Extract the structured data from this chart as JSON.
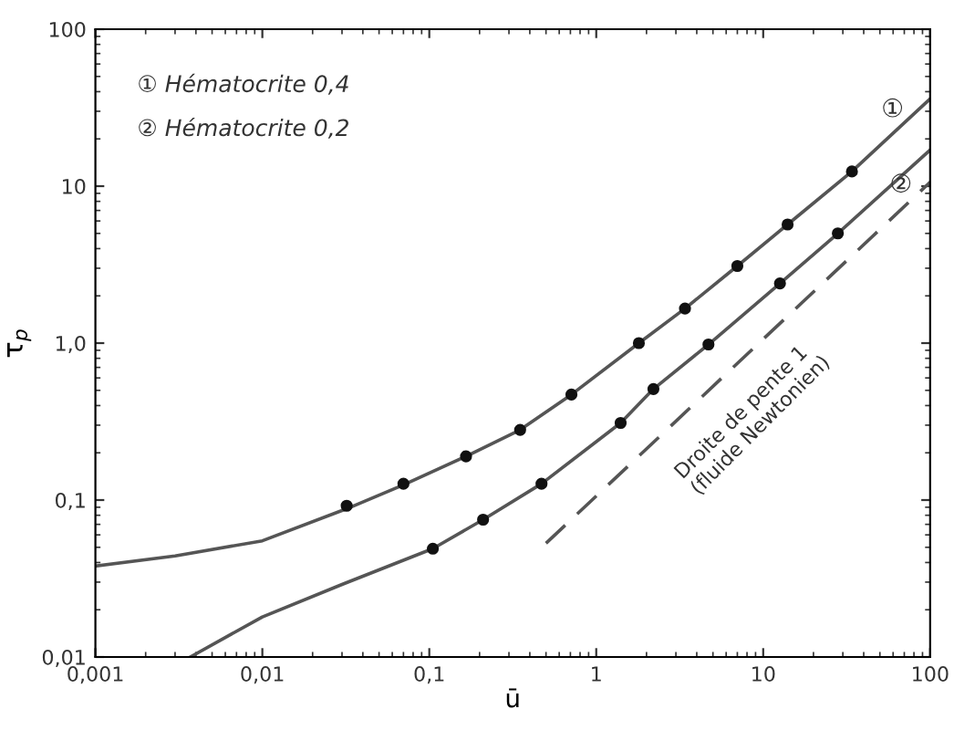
{
  "chart_data": {
    "type": "scatter",
    "xlabel": "ū",
    "ylabel": "τ$_{p}$",
    "log": "xy",
    "grid": false,
    "legend": false,
    "xlim": [
      0.001,
      100
    ],
    "ylim": [
      0.01,
      100
    ],
    "xticks": [
      {
        "value": 0.001,
        "label": "0,001"
      },
      {
        "value": 0.01,
        "label": "0,01"
      },
      {
        "value": 0.1,
        "label": "0,1"
      },
      1,
      10,
      100
    ],
    "yticks": [
      {
        "value": 0.01,
        "label": "0,01"
      },
      {
        "value": 0.1,
        "label": "0,1"
      },
      {
        "value": 1,
        "label": "1,0"
      },
      10,
      100
    ],
    "series": [
      {
        "color": "#111111",
        "marker": "circle",
        "x": [
          0.032,
          0.07,
          0.166,
          0.35,
          0.71,
          1.8,
          3.4,
          7,
          14,
          34
        ],
        "values": [
          0.092,
          0.127,
          0.19,
          0.28,
          0.47,
          1.0,
          1.66,
          3.1,
          5.7,
          12.4
        ]
      },
      {
        "color": "#111111",
        "marker": "circle",
        "x": [
          0.105,
          0.21,
          0.47,
          1.4,
          2.2,
          4.7,
          12.6,
          28
        ],
        "values": [
          0.049,
          0.075,
          0.127,
          0.31,
          0.51,
          0.98,
          2.4,
          5.0
        ]
      },
      {
        "type": "line",
        "color": "#555555",
        "line_style": "solid",
        "x": [
          0.001,
          0.003,
          0.01,
          0.032,
          0.07,
          0.166,
          0.35,
          0.71,
          1.8,
          3.4,
          7,
          14,
          34,
          100
        ],
        "values": [
          0.038,
          0.044,
          0.055,
          0.088,
          0.125,
          0.19,
          0.28,
          0.47,
          1.0,
          1.66,
          3.1,
          5.7,
          12.4,
          36
        ]
      },
      {
        "type": "line",
        "color": "#555555",
        "line_style": "solid",
        "x": [
          0.0037,
          0.01,
          0.03,
          0.105,
          0.21,
          0.47,
          1.4,
          2.2,
          4.7,
          12.6,
          28,
          100
        ],
        "values": [
          0.01,
          0.018,
          0.029,
          0.049,
          0.075,
          0.127,
          0.31,
          0.51,
          0.98,
          2.4,
          5.0,
          17
        ]
      },
      {
        "type": "line",
        "color": "#555555",
        "line_style": "dashed",
        "x": [
          0.5,
          100
        ],
        "values": [
          0.053,
          10.6
        ]
      }
    ],
    "annotations": [
      "① Hématocrite 0,4",
      "② Hématocrite 0,2",
      "①",
      "②",
      "Droite de pente 1\n(fluide Newtonien)"
    ]
  }
}
